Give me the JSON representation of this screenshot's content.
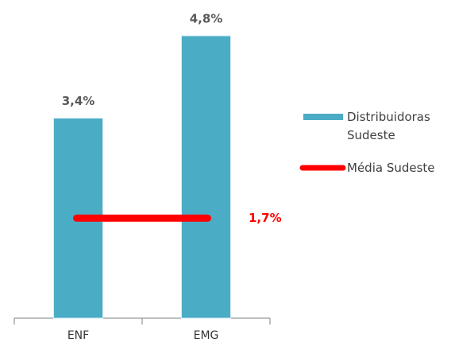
{
  "chart_data": {
    "type": "bar",
    "categories": [
      "ENF",
      "EMG"
    ],
    "series": [
      {
        "name": "Distribuidoras Sudeste",
        "color": "#4bacc6",
        "values": [
          3.4,
          4.8
        ],
        "value_labels": [
          "3,4%",
          "4,8%"
        ]
      }
    ],
    "average": {
      "name": "Média Sudeste",
      "color": "#ff0000",
      "value": 1.7,
      "value_label": "1,7%"
    }
  }
}
